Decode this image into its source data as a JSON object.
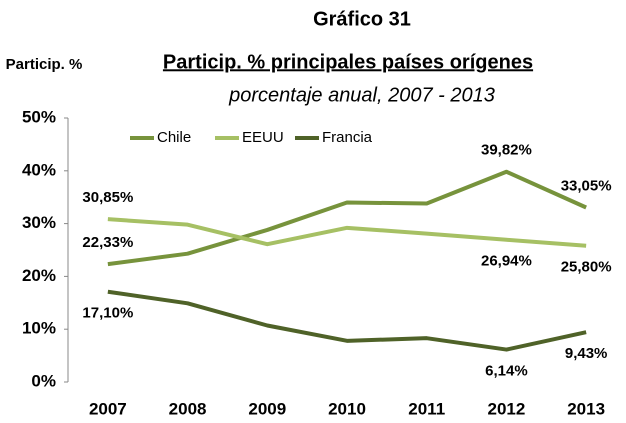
{
  "chart_data": {
    "type": "line",
    "title": "Gráfico 31",
    "subtitle": "Particip. % principales países orígenes",
    "subtitle2": "porcentaje anual, 2007 - 2013",
    "ylabel": "Particip. %",
    "categories": [
      "2007",
      "2008",
      "2009",
      "2010",
      "2011",
      "2012",
      "2013"
    ],
    "series": [
      {
        "name": "Chile",
        "color": "#77933c",
        "values": [
          22.33,
          24.3,
          28.8,
          34.0,
          33.8,
          39.82,
          33.05
        ],
        "value_labels": [
          "22,33%",
          null,
          null,
          null,
          null,
          "39,82%",
          "33,05%"
        ]
      },
      {
        "name": "EEUU",
        "color": "#a6c064",
        "values": [
          30.85,
          29.8,
          26.1,
          29.2,
          28.1,
          26.94,
          25.8
        ],
        "value_labels": [
          "30,85%",
          null,
          null,
          null,
          null,
          "26,94%",
          "25,80%"
        ]
      },
      {
        "name": "Francia",
        "color": "#4f6228",
        "values": [
          17.1,
          14.9,
          10.7,
          7.8,
          8.3,
          6.14,
          9.43
        ],
        "value_labels": [
          "17,10%",
          null,
          null,
          null,
          null,
          "6,14%",
          "9,43%"
        ]
      }
    ],
    "ylim": [
      0,
      50
    ],
    "yticks": [
      {
        "value": 0,
        "label": "0%"
      },
      {
        "value": 10,
        "label": "10%"
      },
      {
        "value": 20,
        "label": "20%"
      },
      {
        "value": 30,
        "label": "30%"
      },
      {
        "value": 40,
        "label": "40%"
      },
      {
        "value": 50,
        "label": "50%"
      }
    ],
    "grid": false,
    "legend": "top"
  }
}
